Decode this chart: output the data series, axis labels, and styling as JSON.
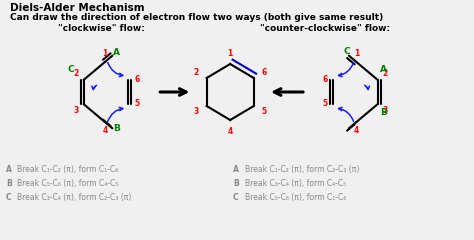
{
  "bg_color": "#f0f0f0",
  "title1": "Diels-Alder Mechanism",
  "title2": "Can draw the direction of electron flow two ways (both give same result)",
  "label_cw": "\"clockwise\" flow:",
  "label_ccw": "\"counter-clockwise\" flow:",
  "left_text": [
    [
      "A",
      "Break C₁-C₂ (π), form C₁-C₆"
    ],
    [
      "B",
      "Break C₅-C₆ (π), form C₄-C₅"
    ],
    [
      "C",
      "Break C₃-C₄ (π), form C₂-C₃ (π)"
    ]
  ],
  "right_text": [
    [
      "A",
      "Break C₁-C₂ (π), form C₂-C₃ (π)"
    ],
    [
      "B",
      "Break C₃-C₄ (π), form C₄-C₅"
    ],
    [
      "C",
      "Break C₅-C₆ (π), form C₁-C₆"
    ]
  ]
}
